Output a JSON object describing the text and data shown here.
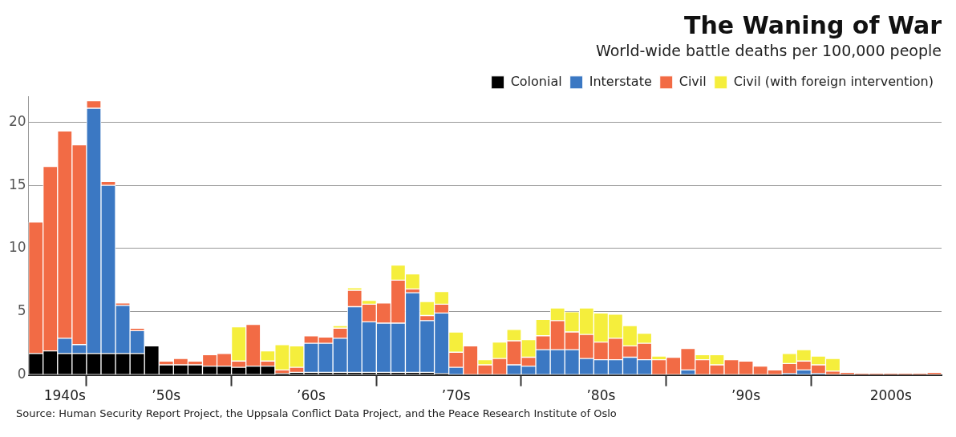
{
  "chart_data": {
    "type": "bar",
    "title": "The Waning of War",
    "subtitle": "World-wide battle deaths per 100,000 people",
    "stacked": true,
    "grid": "y",
    "legend": "top right",
    "categories": [
      null,
      null,
      "1940s",
      null,
      null,
      null,
      null,
      null,
      null,
      "’50s",
      null,
      null,
      null,
      null,
      null,
      null,
      null,
      null,
      null,
      "’60s",
      null,
      null,
      null,
      null,
      null,
      null,
      null,
      null,
      null,
      "’70s",
      null,
      null,
      null,
      null,
      null,
      null,
      null,
      null,
      null,
      "’80s",
      null,
      null,
      null,
      null,
      null,
      null,
      null,
      null,
      null,
      "’90s",
      null,
      null,
      null,
      null,
      null,
      null,
      null,
      null,
      null,
      "2000s",
      null,
      null,
      null
    ],
    "ylim": [
      0,
      22
    ],
    "yticks": [
      0,
      5,
      10,
      15,
      20
    ],
    "series": [
      {
        "name": "Colonial",
        "color": "#000000",
        "values": [
          1.7,
          1.9,
          1.7,
          1.7,
          1.7,
          1.7,
          1.7,
          1.7,
          2.3,
          0.8,
          0.8,
          0.8,
          0.7,
          0.7,
          0.6,
          0.7,
          0.7,
          0.1,
          0.2,
          0.2,
          0.2,
          0.2,
          0.2,
          0.2,
          0.2,
          0.2,
          0.2,
          0.2,
          0.1,
          0,
          0,
          0,
          0,
          0,
          0,
          0,
          0,
          0,
          0,
          0,
          0,
          0,
          0,
          0,
          0,
          0,
          0,
          0,
          0,
          0,
          0,
          0,
          0,
          0,
          0,
          0,
          0,
          0,
          0,
          0,
          0,
          0,
          0
        ]
      },
      {
        "name": "Interstate",
        "color": "#3b78c3",
        "values": [
          0,
          0,
          1.2,
          0.7,
          19.4,
          13.3,
          3.8,
          1.8,
          0,
          0,
          0,
          0,
          0,
          0,
          0,
          0,
          0,
          0,
          0,
          2.3,
          2.3,
          2.7,
          5.2,
          4.0,
          3.9,
          3.9,
          6.3,
          4.1,
          4.8,
          0.6,
          0,
          0,
          0,
          0.8,
          0.7,
          2.0,
          2.0,
          2.0,
          1.3,
          1.2,
          1.2,
          1.4,
          1.2,
          0,
          0,
          0.4,
          0,
          0,
          0,
          0,
          0,
          0,
          0.1,
          0.4,
          0.1,
          0,
          0,
          0,
          0,
          0,
          0,
          0,
          0
        ]
      },
      {
        "name": "Civil",
        "color": "#f26b45",
        "values": [
          10.4,
          14.6,
          16.4,
          15.8,
          0.6,
          0.3,
          0.2,
          0.2,
          0,
          0.3,
          0.5,
          0.3,
          0.9,
          1.0,
          0.5,
          3.3,
          0.4,
          0.3,
          0.4,
          0.6,
          0.5,
          0.8,
          1.3,
          1.4,
          1.6,
          3.4,
          0.3,
          0.4,
          0.7,
          1.2,
          2.3,
          0.8,
          1.3,
          1.9,
          0.7,
          1.1,
          2.3,
          1.4,
          1.9,
          1.4,
          1.7,
          0.9,
          1.3,
          1.2,
          1.4,
          1.7,
          1.2,
          0.8,
          1.2,
          1.1,
          0.7,
          0.4,
          0.8,
          0.7,
          0.7,
          0.3,
          0.2,
          0.1,
          0.1,
          0.1,
          0.1,
          0.1,
          0.2
        ]
      },
      {
        "name": "Civil (with foreign intervention)",
        "color": "#f5ee3c",
        "values": [
          0,
          0,
          0,
          0,
          0,
          0,
          0,
          0,
          0,
          0,
          0,
          0,
          0,
          0,
          2.7,
          0,
          0.8,
          2.0,
          1.7,
          0,
          0,
          0.2,
          0.2,
          0.3,
          0,
          1.2,
          1.2,
          1.1,
          1.0,
          1.6,
          0,
          0.4,
          1.3,
          0.9,
          1.4,
          1.3,
          1.0,
          1.6,
          2.1,
          2.3,
          1.9,
          1.6,
          0.8,
          0.3,
          0,
          0,
          0.4,
          0.8,
          0,
          0,
          0,
          0,
          0.8,
          0.9,
          0.7,
          1.0,
          0,
          0,
          0,
          0,
          0,
          0,
          0
        ]
      }
    ],
    "annotations": [
      "Source: Human Security Report Project, the Uppsala Conflict Data Project, and the Peace Research Institute of Oslo"
    ]
  }
}
